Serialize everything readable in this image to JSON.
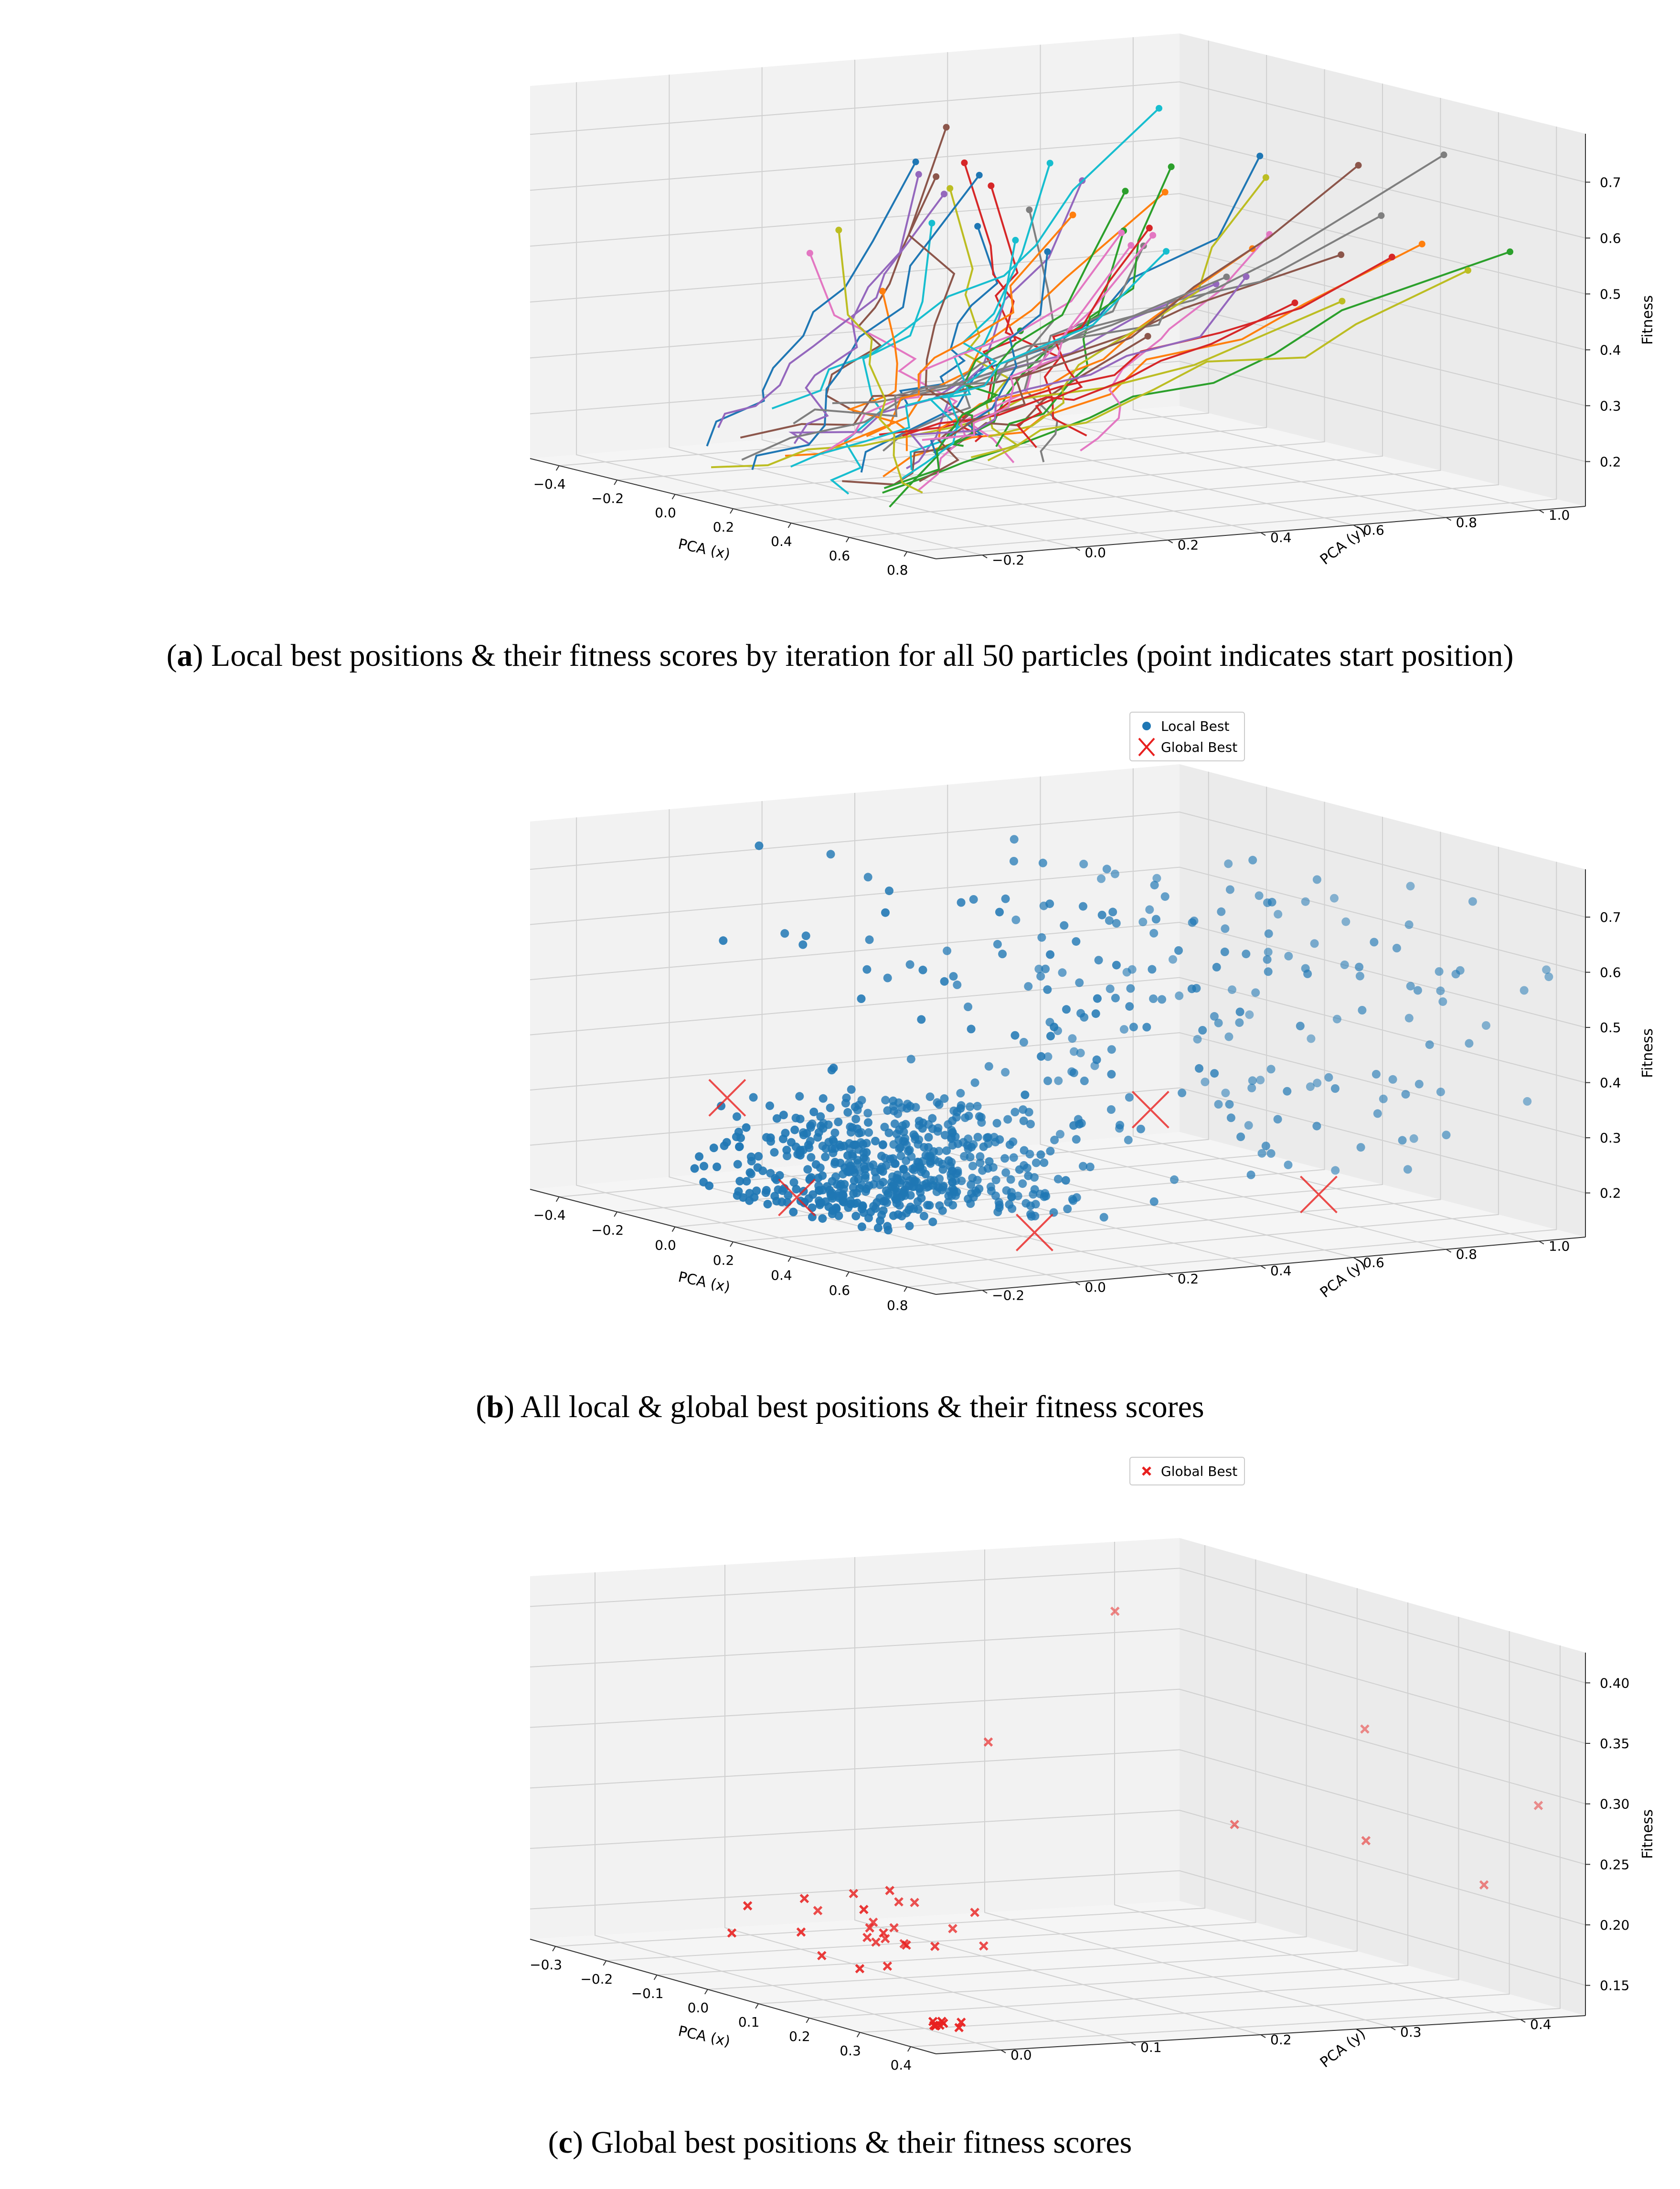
{
  "chart_data": [
    {
      "type": "line3d",
      "panel_label": "a",
      "caption": "Local best positions & their fitness scores by iteration for all 50 particles (point indicates start position)",
      "xlabel": "PCA (x)",
      "ylabel": "PCA (y)",
      "zlabel": "Fitness",
      "xlim": [
        -0.5,
        0.9
      ],
      "ylim": [
        -0.3,
        1.1
      ],
      "zlim": [
        0.12,
        0.76
      ],
      "xticks": [
        "−0.4",
        "−0.2",
        "0.0",
        "0.2",
        "0.4",
        "0.6",
        "0.8"
      ],
      "yticks": [
        "−0.2",
        "0.0",
        "0.2",
        "0.4",
        "0.6",
        "0.8",
        "1.0"
      ],
      "zticks": [
        "0.2",
        "0.3",
        "0.4",
        "0.5",
        "0.6",
        "0.7"
      ],
      "particles": 50,
      "series_colors": [
        "#1f77b4",
        "#ff7f0e",
        "#2ca02c",
        "#d62728",
        "#9467bd",
        "#8c564b",
        "#e377c2",
        "#7f7f7f",
        "#bcbd22",
        "#17becf"
      ]
    },
    {
      "type": "scatter3d",
      "panel_label": "b",
      "caption": "All local & global best positions & their fitness scores",
      "xlabel": "PCA (x)",
      "ylabel": "PCA (y)",
      "zlabel": "Fitness",
      "xlim": [
        -0.5,
        0.9
      ],
      "ylim": [
        -0.3,
        1.1
      ],
      "zlim": [
        0.12,
        0.76
      ],
      "xticks": [
        "−0.4",
        "−0.2",
        "0.0",
        "0.2",
        "0.4",
        "0.6",
        "0.8"
      ],
      "yticks": [
        "−0.2",
        "0.0",
        "0.2",
        "0.4",
        "0.6",
        "0.8",
        "1.0"
      ],
      "zticks": [
        "0.2",
        "0.3",
        "0.4",
        "0.5",
        "0.6",
        "0.7"
      ],
      "legend": [
        {
          "label": "Local Best",
          "color": "#1f77b4",
          "marker": "o"
        },
        {
          "label": "Global Best",
          "color": "#e8201f",
          "marker": "x"
        }
      ],
      "local_best_count": 800,
      "global_best": [
        {
          "x": -0.38,
          "y": 0.05,
          "z": 0.27
        },
        {
          "x": 0.28,
          "y": 0.55,
          "z": 0.3
        },
        {
          "x": 0.6,
          "y": 0.1,
          "z": 0.16
        },
        {
          "x": 0.7,
          "y": 0.65,
          "z": 0.2
        },
        {
          "x": 0.1,
          "y": -0.1,
          "z": 0.17
        }
      ]
    },
    {
      "type": "scatter3d",
      "panel_label": "c",
      "caption": "Global best positions & their fitness scores",
      "xlabel": "PCA (x)",
      "ylabel": "PCA (y)",
      "zlabel": "Fitness",
      "xlim": [
        -0.35,
        0.42
      ],
      "ylim": [
        -0.08,
        0.42
      ],
      "zlim": [
        0.13,
        0.43
      ],
      "xticks": [
        "−0.3",
        "−0.2",
        "−0.1",
        "0.0",
        "0.1",
        "0.2",
        "0.3",
        "0.4"
      ],
      "yticks": [
        "0.0",
        "0.1",
        "0.2",
        "0.3",
        "0.4"
      ],
      "zticks": [
        "0.15",
        "0.20",
        "0.25",
        "0.30",
        "0.35",
        "0.40"
      ],
      "legend": [
        {
          "label": "Global Best",
          "color": "#e8201f",
          "marker": "x"
        }
      ],
      "points": [
        {
          "x": -0.3,
          "y": 0.35,
          "z": 0.38
        },
        {
          "x": -0.22,
          "y": 0.22,
          "z": 0.29
        },
        {
          "x": 0.05,
          "y": 0.3,
          "z": 0.25
        },
        {
          "x": 0.1,
          "y": 0.38,
          "z": 0.33
        },
        {
          "x": 0.25,
          "y": 0.32,
          "z": 0.26
        },
        {
          "x": 0.38,
          "y": 0.4,
          "z": 0.3
        },
        {
          "x": 0.4,
          "y": 0.35,
          "z": 0.24
        },
        {
          "x": -0.15,
          "y": 0.05,
          "z": 0.18
        },
        {
          "x": -0.1,
          "y": 0.08,
          "z": 0.16
        },
        {
          "x": 0.0,
          "y": 0.05,
          "z": 0.17
        },
        {
          "x": 0.05,
          "y": 0.1,
          "z": 0.19
        },
        {
          "x": 0.32,
          "y": -0.02,
          "z": 0.14
        }
      ]
    }
  ]
}
